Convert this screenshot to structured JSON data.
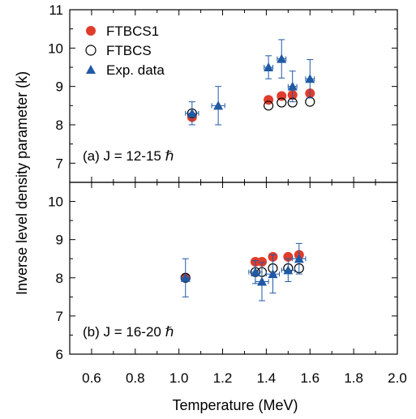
{
  "chart_data": [
    {
      "panel": "a",
      "type": "scatter",
      "annotation": "(a) J = 12-15 ℏ",
      "xlim": [
        0.5,
        2.0
      ],
      "ylim": [
        6.5,
        11
      ],
      "xticks": [
        "0.6",
        "0.8",
        "1.0",
        "1.2",
        "1.4",
        "1.6",
        "1.8",
        "2.0"
      ],
      "yticks": [
        "7",
        "8",
        "9",
        "10",
        "11"
      ],
      "legend": {
        "placement": "top-left",
        "entries": [
          "FTBCS1",
          "FTBCS",
          "Exp. data"
        ]
      },
      "series": [
        {
          "name": "FTBCS1",
          "marker": "filled-circle",
          "color": "#e03c2c",
          "x": [
            1.06,
            1.41,
            1.47,
            1.52,
            1.6
          ],
          "y": [
            8.2,
            8.65,
            8.75,
            8.78,
            8.82
          ]
        },
        {
          "name": "FTBCS",
          "marker": "open-circle",
          "color": "#000000",
          "x": [
            1.06,
            1.41,
            1.47,
            1.52,
            1.6
          ],
          "y": [
            8.3,
            8.5,
            8.58,
            8.58,
            8.6
          ]
        },
        {
          "name": "Exp. data",
          "marker": "filled-triangle",
          "color": "#1f5aa6",
          "x": [
            1.06,
            1.18,
            1.41,
            1.47,
            1.52,
            1.6
          ],
          "y": [
            8.3,
            8.5,
            9.5,
            9.72,
            9.0,
            9.2
          ],
          "xerr": [
            0.03,
            0.03,
            0.02,
            0.02,
            0.02,
            0.02
          ],
          "yerr": [
            0.3,
            0.5,
            0.3,
            0.5,
            0.4,
            0.5
          ]
        }
      ]
    },
    {
      "panel": "b",
      "type": "scatter",
      "annotation": "(b) J = 16-20 ℏ",
      "xlim": [
        0.5,
        2.0
      ],
      "ylim": [
        6,
        10.5
      ],
      "xticks": [
        "0.6",
        "0.8",
        "1.0",
        "1.2",
        "1.4",
        "1.6",
        "1.8",
        "2.0"
      ],
      "yticks": [
        "6",
        "7",
        "8",
        "9",
        "10"
      ],
      "xlabel": "Temperature (MeV)",
      "series": [
        {
          "name": "FTBCS1",
          "marker": "filled-circle",
          "color": "#e03c2c",
          "x": [
            1.03,
            1.35,
            1.38,
            1.43,
            1.5,
            1.55
          ],
          "y": [
            8.0,
            8.42,
            8.42,
            8.55,
            8.55,
            8.6
          ]
        },
        {
          "name": "FTBCS",
          "marker": "open-circle",
          "color": "#000000",
          "x": [
            1.03,
            1.35,
            1.38,
            1.43,
            1.5,
            1.55
          ],
          "y": [
            8.0,
            8.15,
            8.15,
            8.25,
            8.25,
            8.25
          ]
        },
        {
          "name": "Exp. data",
          "marker": "filled-triangle",
          "color": "#1f5aa6",
          "x": [
            1.03,
            1.35,
            1.38,
            1.43,
            1.5,
            1.55
          ],
          "y": [
            8.0,
            8.15,
            7.9,
            8.1,
            8.2,
            8.5
          ],
          "xerr": [
            0.02,
            0.03,
            0.03,
            0.03,
            0.03,
            0.03
          ],
          "yerr": [
            0.5,
            0.3,
            0.5,
            0.5,
            0.3,
            0.4
          ]
        }
      ]
    }
  ],
  "shared": {
    "ylabel": "Inverse level density parameter (k)",
    "xlabel": "Temperature (MeV)"
  }
}
